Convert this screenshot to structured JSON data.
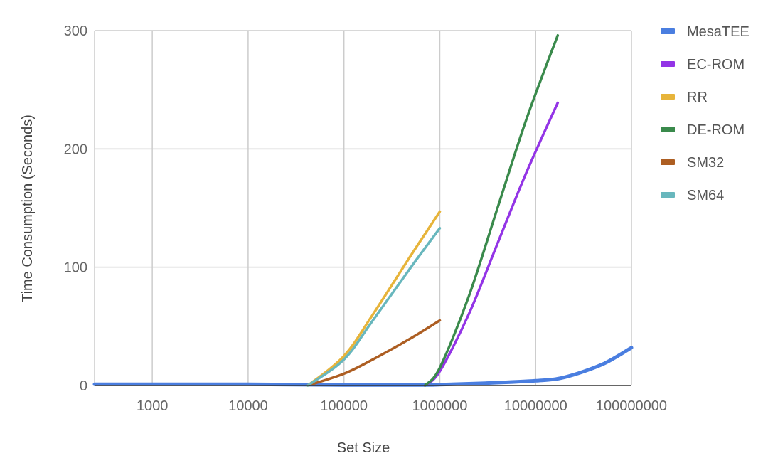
{
  "chart_data": {
    "type": "line",
    "xlabel": "Set Size",
    "ylabel": "Time Consumption (Seconds)",
    "x_scale": "log",
    "xlim": [
      250,
      100000000
    ],
    "ylim": [
      0,
      300
    ],
    "x_ticks": [
      1000,
      10000,
      100000,
      1000000,
      10000000,
      100000000
    ],
    "x_tick_labels": [
      "1000",
      "10000",
      "100000",
      "1000000",
      "10000000",
      "100000000"
    ],
    "y_ticks": [
      0,
      100,
      200,
      300
    ],
    "y_tick_labels": [
      "0",
      "100",
      "200",
      "300"
    ],
    "grid": true,
    "legend_position": "right",
    "series": [
      {
        "name": "MesaTEE",
        "color": "#4a7ee0",
        "points": [
          [
            250,
            1
          ],
          [
            1000,
            1
          ],
          [
            10000,
            1
          ],
          [
            100000,
            0.5
          ],
          [
            700000,
            0.5
          ],
          [
            1000000,
            0.8
          ],
          [
            3000000,
            2
          ],
          [
            10000000,
            4
          ],
          [
            20000000,
            7
          ],
          [
            50000000,
            18
          ],
          [
            100000000,
            32
          ]
        ]
      },
      {
        "name": "EC-ROM",
        "color": "#9334e6",
        "points": [
          [
            700000,
            0
          ],
          [
            1000000,
            12
          ],
          [
            2000000,
            60
          ],
          [
            4000000,
            120
          ],
          [
            8000000,
            180
          ],
          [
            17000000,
            239
          ]
        ]
      },
      {
        "name": "RR",
        "color": "#e7b43a",
        "points": [
          [
            42000,
            0
          ],
          [
            100000,
            25
          ],
          [
            200000,
            60
          ],
          [
            500000,
            110
          ],
          [
            1000000,
            147
          ]
        ]
      },
      {
        "name": "DE-ROM",
        "color": "#3a8a4c",
        "points": [
          [
            700000,
            0
          ],
          [
            1000000,
            15
          ],
          [
            2000000,
            75
          ],
          [
            4000000,
            150
          ],
          [
            8000000,
            225
          ],
          [
            17000000,
            296
          ]
        ]
      },
      {
        "name": "SM32",
        "color": "#ad5e22",
        "points": [
          [
            42000,
            0
          ],
          [
            100000,
            10
          ],
          [
            200000,
            22
          ],
          [
            500000,
            40
          ],
          [
            1000000,
            55
          ]
        ]
      },
      {
        "name": "SM64",
        "color": "#68b7bd",
        "points": [
          [
            42000,
            0
          ],
          [
            100000,
            22
          ],
          [
            200000,
            55
          ],
          [
            500000,
            100
          ],
          [
            1000000,
            133
          ]
        ]
      }
    ]
  }
}
